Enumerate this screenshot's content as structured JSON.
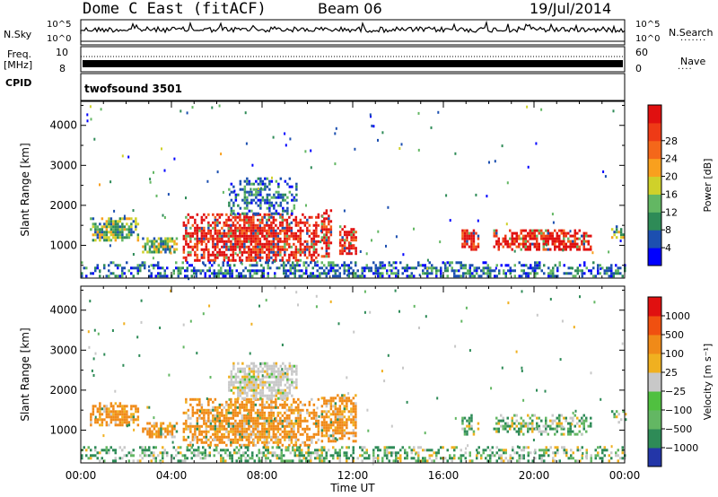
{
  "header": {
    "station": "Dome C East (fitACF)",
    "beam": "Beam 06",
    "date": "19/Jul/2014"
  },
  "strip_panels": {
    "nsky": {
      "label": "N.Sky",
      "tick_top": "10^5",
      "tick_bottom": "10^0",
      "right_label": "N.Search",
      "right_tick_top": "10^5",
      "right_tick_bottom": "10^0"
    },
    "freq": {
      "label_line1": "Freq.",
      "label_line2": "[MHz]",
      "tick_top": "10",
      "tick_bottom": "8",
      "right_label": "Nave",
      "right_tick_top": "60",
      "right_tick_bottom": "0"
    },
    "cpid": {
      "label": "CPID",
      "program": "twofsound 3501"
    }
  },
  "chart_data": [
    {
      "type": "heatmap",
      "panel": "power",
      "ylabel": "Slant Range [km]",
      "yticks": [
        "1000",
        "2000",
        "3000",
        "4000"
      ],
      "ylim": [
        180,
        4600
      ],
      "xlim_hours": [
        0,
        24
      ],
      "xticks": [
        "00:00",
        "04:00",
        "08:00",
        "12:00",
        "16:00",
        "20:00",
        "00:00"
      ],
      "colorbar": {
        "title": "Power [dB]",
        "ticks": [
          "4",
          "8",
          "12",
          "16",
          "20",
          "24",
          "28"
        ],
        "colors": [
          "#0000ff",
          "#1c4fb0",
          "#2e8b57",
          "#63b763",
          "#cfd12a",
          "#f9a01e",
          "#f4671a",
          "#ee3a16",
          "#e01010"
        ],
        "range": [
          0,
          30
        ]
      },
      "echo_regions": [
        {
          "t0": 0.4,
          "t1": 2.5,
          "r0": 1100,
          "r1": 1700,
          "level": "mid"
        },
        {
          "t0": 2.7,
          "t1": 4.2,
          "r0": 800,
          "r1": 1200,
          "level": "mid"
        },
        {
          "t0": 4.5,
          "t1": 10.5,
          "r0": 600,
          "r1": 1800,
          "level": "high"
        },
        {
          "t0": 6.5,
          "t1": 9.5,
          "r0": 1800,
          "r1": 2700,
          "level": "low"
        },
        {
          "t0": 10.6,
          "t1": 11.0,
          "r0": 700,
          "r1": 1900,
          "level": "high"
        },
        {
          "t0": 11.4,
          "t1": 12.1,
          "r0": 800,
          "r1": 1500,
          "level": "high"
        },
        {
          "t0": 16.8,
          "t1": 17.5,
          "r0": 900,
          "r1": 1400,
          "level": "high"
        },
        {
          "t0": 18.2,
          "t1": 22.5,
          "r0": 900,
          "r1": 1400,
          "level": "high"
        },
        {
          "t0": 23.4,
          "t1": 24.0,
          "r0": 1200,
          "r1": 1500,
          "level": "mid"
        },
        {
          "t0": 0.0,
          "t1": 24.0,
          "r0": 200,
          "r1": 600,
          "level": "low"
        }
      ]
    },
    {
      "type": "heatmap",
      "panel": "velocity",
      "ylabel": "Slant Range [km]",
      "yticks": [
        "1000",
        "2000",
        "3000",
        "4000"
      ],
      "ylim": [
        180,
        4600
      ],
      "xlim_hours": [
        0,
        24
      ],
      "xticks": [
        "00:00",
        "04:00",
        "08:00",
        "12:00",
        "16:00",
        "20:00",
        "00:00"
      ],
      "xlabel": "Time UT",
      "colorbar": {
        "title": "Velocity [m s⁻¹]",
        "ticks": [
          "1000",
          "500",
          "100",
          "25",
          "−25",
          "−100",
          "−500",
          "−1000"
        ],
        "colors": [
          "#2336a8",
          "#2e8b57",
          "#63b763",
          "#50c040",
          "#c8c8c8",
          "#f0b020",
          "#f08a18",
          "#f05010",
          "#e01010"
        ],
        "range": [
          -1000,
          1000
        ]
      },
      "echo_regions": [
        {
          "t0": 0.4,
          "t1": 2.5,
          "r0": 1100,
          "r1": 1700,
          "level": "neg"
        },
        {
          "t0": 2.7,
          "t1": 4.2,
          "r0": 800,
          "r1": 1200,
          "level": "neg"
        },
        {
          "t0": 4.5,
          "t1": 10.5,
          "r0": 600,
          "r1": 1800,
          "level": "neg"
        },
        {
          "t0": 6.5,
          "t1": 9.5,
          "r0": 1800,
          "r1": 2700,
          "level": "zero"
        },
        {
          "t0": 10.6,
          "t1": 12.1,
          "r0": 700,
          "r1": 1900,
          "level": "neg"
        },
        {
          "t0": 16.8,
          "t1": 17.5,
          "r0": 900,
          "r1": 1400,
          "level": "pos"
        },
        {
          "t0": 18.2,
          "t1": 22.5,
          "r0": 900,
          "r1": 1400,
          "level": "pos"
        },
        {
          "t0": 23.4,
          "t1": 24.0,
          "r0": 1200,
          "r1": 1500,
          "level": "pos"
        },
        {
          "t0": 0.0,
          "t1": 24.0,
          "r0": 200,
          "r1": 600,
          "level": "pos"
        }
      ]
    }
  ]
}
